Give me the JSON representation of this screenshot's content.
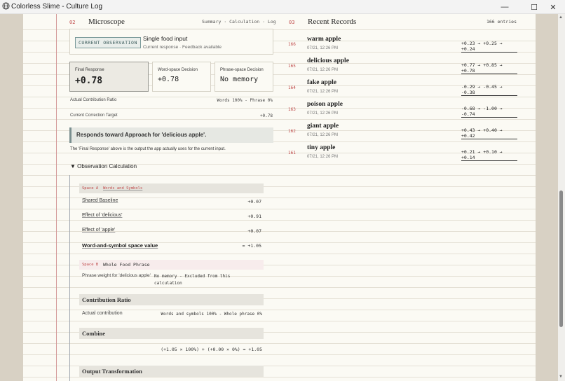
{
  "window": {
    "title": "Colorless Slime - Culture Log",
    "controls": {
      "minimize": "—",
      "maximize": "☐",
      "close": "✕"
    }
  },
  "microscope": {
    "number": "02",
    "title": "Microscope",
    "nav": "Summary · Calculation · Log",
    "observation": {
      "badge": "CURRENT OBSERVATION",
      "title": "Single food input",
      "subtitle": "Current response · Feedback available"
    },
    "final_response": {
      "label": "Final Response",
      "value": "+0.78"
    },
    "word_space": {
      "label": "Word-space Decision",
      "value": "+0.78"
    },
    "phrase_space": {
      "label": "Phrase-space Decision",
      "value": "No memory"
    },
    "ratio": {
      "label": "Actual Contribution Ratio",
      "value": "Words 100% - Phrase 0%"
    },
    "target": {
      "label": "Current Correction Target",
      "value": "+0.78"
    },
    "banner": "Responds toward Approach for 'delicious apple'.",
    "note": "The 'Final Response' above is the output the app actually uses for the current input.",
    "calc_toggle": "▼ Observation Calculation",
    "space_a": {
      "label": "Space A",
      "name": "Words and Symbols",
      "rows": [
        {
          "label": "Shared Baseline",
          "value": "+0.07"
        },
        {
          "label": "Effect of 'delicious'",
          "value": "+0.91"
        },
        {
          "label": "Effect of 'apple'",
          "value": "+0.07"
        }
      ],
      "total": {
        "label": "Word-and-symbol space value",
        "value": "≈ +1.05"
      }
    },
    "space_b": {
      "label": "Space B",
      "name": "Whole Food Phrase",
      "weight_label": "Phrase weight for 'delicious apple'",
      "weight_value": "No memory - Excluded from this calculation"
    },
    "contribution": {
      "heading": "Contribution Ratio",
      "label": "Actual contribution",
      "value": "Words and symbols 100% - Whole phrase 0%"
    },
    "combine": {
      "heading": "Combine",
      "formula": "(+1.05 × 100%) + (+0.00 × 0%) ≈ +1.05"
    },
    "output": {
      "heading": "Output Transformation"
    }
  },
  "records": {
    "number": "03",
    "title": "Recent Records",
    "count": "166 entries",
    "items": [
      {
        "id": "166",
        "name": "warm apple",
        "time": "07/21, 12:26 PM",
        "calc": "+0.23 → +0.25 → +0.24"
      },
      {
        "id": "165",
        "name": "delicious apple",
        "time": "07/21, 12:26 PM",
        "calc": "+0.77 → +0.85 → +0.78"
      },
      {
        "id": "164",
        "name": "fake apple",
        "time": "07/21, 12:26 PM",
        "calc": "-0.29 → -0.45 → -0.38"
      },
      {
        "id": "163",
        "name": "poison apple",
        "time": "07/21, 12:26 PM",
        "calc": "-0.68 → -1.00 → -0.74"
      },
      {
        "id": "162",
        "name": "giant apple",
        "time": "07/21, 12:26 PM",
        "calc": "+0.43 → +0.40 → +0.42"
      },
      {
        "id": "161",
        "name": "tiny apple",
        "time": "07/21, 12:26 PM",
        "calc": "+0.21 → +0.10 → +0.14"
      }
    ]
  }
}
